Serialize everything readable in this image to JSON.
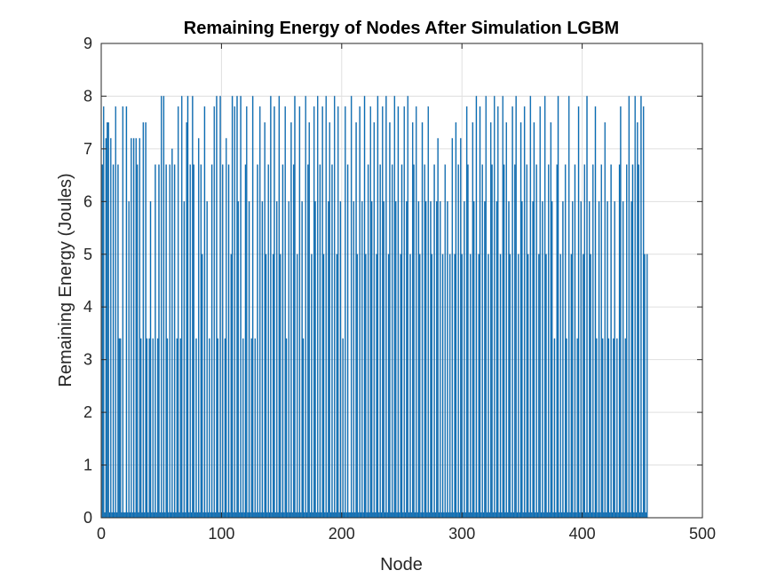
{
  "chart_data": {
    "type": "bar",
    "title": "Remaining Energy of Nodes After Simulation LGBM",
    "xlabel": "Node",
    "ylabel": "Remaining Energy (Joules)",
    "xlim": [
      0,
      500
    ],
    "ylim": [
      0,
      9
    ],
    "xticks": [
      0,
      100,
      200,
      300,
      400,
      500
    ],
    "yticks": [
      0,
      1,
      2,
      3,
      4,
      5,
      6,
      7,
      8,
      9
    ],
    "grid": true,
    "bar_color": "#0072BD",
    "bar_edge_color": "#1f5f9a",
    "node_start": 1,
    "values": [
      6.7,
      7.8,
      0.1,
      7.2,
      7.5,
      7.5,
      0.1,
      7.2,
      0.1,
      6.7,
      0.1,
      7.8,
      0.1,
      6.7,
      3.4,
      3.4,
      0.1,
      7.8,
      0.1,
      0.1,
      7.8,
      0.1,
      6.0,
      0.1,
      7.2,
      0.1,
      7.2,
      0.1,
      7.2,
      6.7,
      0.1,
      7.2,
      3.4,
      0.1,
      7.5,
      0.1,
      7.5,
      3.4,
      0.1,
      3.4,
      6.0,
      0.1,
      3.4,
      0.1,
      6.7,
      0.1,
      3.4,
      6.7,
      0.1,
      8.0,
      0.1,
      8.0,
      0.1,
      6.7,
      3.4,
      0.1,
      6.7,
      0.1,
      7.0,
      0.1,
      6.7,
      0.1,
      3.4,
      7.8,
      0.1,
      3.4,
      8.0,
      0.1,
      6.0,
      0.1,
      7.5,
      8.0,
      0.1,
      6.7,
      0.1,
      8.0,
      6.7,
      0.1,
      3.4,
      0.1,
      7.2,
      0.1,
      6.7,
      5.0,
      0.1,
      7.8,
      0.1,
      6.0,
      0.1,
      3.4,
      0.1,
      6.7,
      0.1,
      7.8,
      0.1,
      8.0,
      3.4,
      0.1,
      8.0,
      0.1,
      6.7,
      0.1,
      3.4,
      7.2,
      0.1,
      6.7,
      0.1,
      5.0,
      8.0,
      0.1,
      7.8,
      0.1,
      8.0,
      6.0,
      0.1,
      8.0,
      0.1,
      3.4,
      0.1,
      6.7,
      7.8,
      0.1,
      6.0,
      0.1,
      3.4,
      8.0,
      0.1,
      3.4,
      0.1,
      6.7,
      0.1,
      7.8,
      0.1,
      6.0,
      0.1,
      7.5,
      5.0,
      0.1,
      6.7,
      0.1,
      8.0,
      0.1,
      5.0,
      7.8,
      0.1,
      6.0,
      0.1,
      8.0,
      5.0,
      0.1,
      6.7,
      0.1,
      7.8,
      3.4,
      0.1,
      6.0,
      0.1,
      7.5,
      0.1,
      6.7,
      8.0,
      0.1,
      5.0,
      0.1,
      7.8,
      0.1,
      6.0,
      3.4,
      0.1,
      8.0,
      0.1,
      6.7,
      7.5,
      0.1,
      5.0,
      0.1,
      7.8,
      6.0,
      0.1,
      8.0,
      0.1,
      6.7,
      0.1,
      7.8,
      5.0,
      0.1,
      8.0,
      0.1,
      6.0,
      7.5,
      0.1,
      6.7,
      0.1,
      8.0,
      0.1,
      5.0,
      7.8,
      0.1,
      6.0,
      0.1,
      3.4,
      0.1,
      7.8,
      0.1,
      6.7,
      0.1,
      0.1,
      8.0,
      0.1,
      6.0,
      0.1,
      7.5,
      5.0,
      0.1,
      7.8,
      0.1,
      6.0,
      0.1,
      8.0,
      5.0,
      0.1,
      6.7,
      0.1,
      7.8,
      6.0,
      0.1,
      7.5,
      0.1,
      5.0,
      8.0,
      0.1,
      6.7,
      0.1,
      7.8,
      6.0,
      0.1,
      8.0,
      0.1,
      5.0,
      7.5,
      0.1,
      6.7,
      0.1,
      8.0,
      6.0,
      0.1,
      7.8,
      0.1,
      5.0,
      6.7,
      0.1,
      7.8,
      0.1,
      6.0,
      8.0,
      0.1,
      5.0,
      0.1,
      7.5,
      6.7,
      0.1,
      7.8,
      0.1,
      6.0,
      5.0,
      0.1,
      7.5,
      0.1,
      6.7,
      6.0,
      0.1,
      7.8,
      0.1,
      6.0,
      5.0,
      0.1,
      6.7,
      0.1,
      6.0,
      7.2,
      0.1,
      6.0,
      0.1,
      5.0,
      0.1,
      6.7,
      0.1,
      6.0,
      0.1,
      5.0,
      0.1,
      7.2,
      0.1,
      5.0,
      7.5,
      0.1,
      6.7,
      0.1,
      7.2,
      5.0,
      0.1,
      6.0,
      0.1,
      7.8,
      6.7,
      0.1,
      5.0,
      0.1,
      7.5,
      6.0,
      0.1,
      8.0,
      0.1,
      5.0,
      7.8,
      0.1,
      6.7,
      0.1,
      6.0,
      8.0,
      0.1,
      5.0,
      0.1,
      7.5,
      6.7,
      0.1,
      8.0,
      0.1,
      6.0,
      7.8,
      0.1,
      5.0,
      0.1,
      8.0,
      6.7,
      0.1,
      7.5,
      0.1,
      6.0,
      5.0,
      0.1,
      7.8,
      0.1,
      6.7,
      8.0,
      0.1,
      5.0,
      0.1,
      7.5,
      6.0,
      0.1,
      7.8,
      0.1,
      6.7,
      5.0,
      0.1,
      8.0,
      0.1,
      6.0,
      7.5,
      0.1,
      6.7,
      0.1,
      5.0,
      7.8,
      0.1,
      6.0,
      0.1,
      8.0,
      5.0,
      0.1,
      6.7,
      0.1,
      7.5,
      6.0,
      0.1,
      3.4,
      0.1,
      6.7,
      8.0,
      0.1,
      5.0,
      0.1,
      6.0,
      0.1,
      6.7,
      3.4,
      0.1,
      8.0,
      0.1,
      5.0,
      6.0,
      0.1,
      6.7,
      0.1,
      3.4,
      7.8,
      0.1,
      6.0,
      0.1,
      5.0,
      6.7,
      0.1,
      8.0,
      0.1,
      6.0,
      5.0,
      0.1,
      6.7,
      0.1,
      7.8,
      3.4,
      0.1,
      6.0,
      0.1,
      6.7,
      3.4,
      0.1,
      7.5,
      0.1,
      6.0,
      3.4,
      0.1,
      6.7,
      0.1,
      3.4,
      6.0,
      0.1,
      3.4,
      0.1,
      6.7,
      7.8,
      0.1,
      6.0,
      0.1,
      3.4,
      6.7,
      0.1,
      8.0,
      0.1,
      6.0,
      6.7,
      0.1,
      8.0,
      0.1,
      7.5,
      6.7,
      0.1,
      8.0,
      0.1,
      7.8,
      5.0,
      0.1,
      5.0
    ]
  }
}
